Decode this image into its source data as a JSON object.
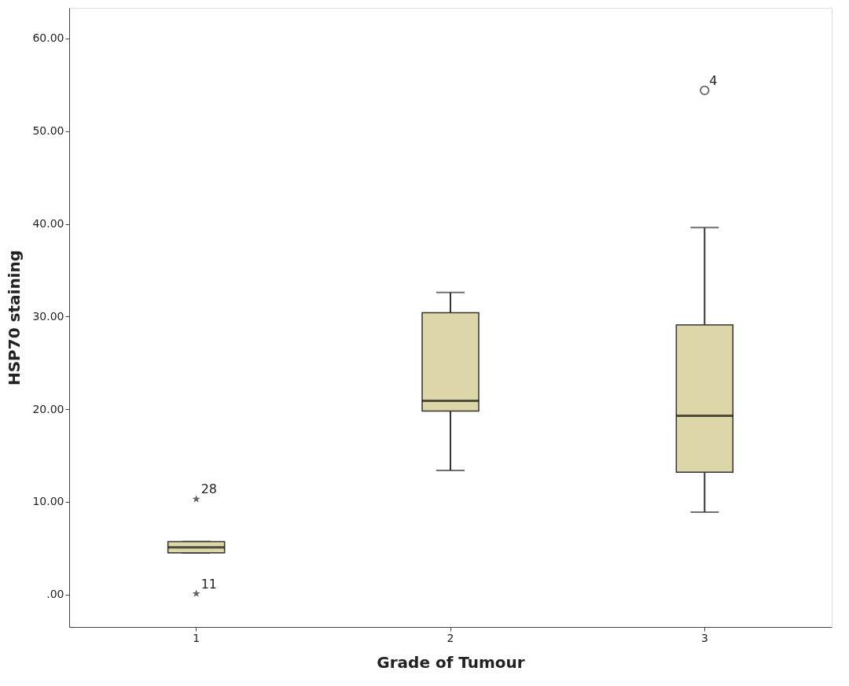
{
  "chart_data": {
    "type": "box",
    "xlabel": "Grade of Tumour",
    "ylabel": "HSP70 staining",
    "categories": [
      "1",
      "2",
      "3"
    ],
    "ylim": [
      -3.5,
      63.3
    ],
    "yticks": [
      {
        "value": 0,
        "label": ".00"
      },
      {
        "value": 10,
        "label": "10.00"
      },
      {
        "value": 20,
        "label": "20.00"
      },
      {
        "value": 30,
        "label": "30.00"
      },
      {
        "value": 40,
        "label": "40.00"
      },
      {
        "value": 50,
        "label": "50.00"
      },
      {
        "value": 60,
        "label": "60.00"
      }
    ],
    "grid": false,
    "series": [
      {
        "color": "#dcd6a8",
        "boxes": [
          {
            "low": 4.5,
            "q1": 4.5,
            "median": 5.1,
            "q3": 5.7,
            "high": 5.7
          },
          {
            "low": 13.4,
            "q1": 19.8,
            "median": 20.9,
            "q3": 30.4,
            "high": 32.6
          },
          {
            "low": 8.9,
            "q1": 13.2,
            "median": 19.3,
            "q3": 29.1,
            "high": 39.6
          }
        ]
      },
      {
        "type": "scatter",
        "marker": "circle",
        "color": "#222222",
        "x": [
          "3"
        ],
        "values": [
          54.4
        ]
      },
      {
        "type": "scatter",
        "marker": "star",
        "color": "#222222",
        "x": [
          "1",
          "1"
        ],
        "values": [
          10.3,
          0.1
        ]
      }
    ],
    "annotations": [
      {
        "text": "28",
        "x": "1",
        "y": 10.3
      },
      {
        "text": "11",
        "x": "1",
        "y": 0.1
      },
      {
        "text": "4",
        "x": "3",
        "y": 54.4
      }
    ]
  }
}
